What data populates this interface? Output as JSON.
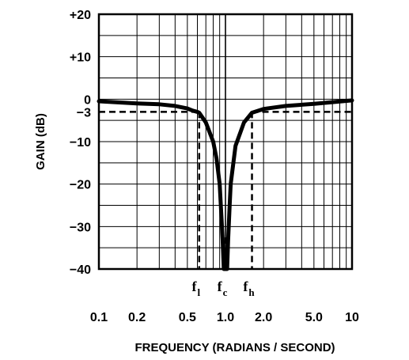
{
  "chart_data": {
    "type": "line",
    "xlabel": "FREQUENCY (RADIANS / SECOND)",
    "ylabel": "GAIN (dB)",
    "x_scale": "log",
    "xlim": [
      0.1,
      10
    ],
    "ylim": [
      -40,
      20
    ],
    "grid": true,
    "x_ticks": [
      {
        "value": 0.1,
        "label": "0.1"
      },
      {
        "value": 0.2,
        "label": "0.2"
      },
      {
        "value": 0.5,
        "label": "0.5"
      },
      {
        "value": 1.0,
        "label": "1.0"
      },
      {
        "value": 2.0,
        "label": "2.0"
      },
      {
        "value": 5.0,
        "label": "5.0"
      },
      {
        "value": 10,
        "label": "10"
      }
    ],
    "y_ticks": [
      {
        "value": 20,
        "label": "+20"
      },
      {
        "value": 10,
        "label": "+10"
      },
      {
        "value": 0,
        "label": "0"
      },
      {
        "value": -3,
        "label": "−3"
      },
      {
        "value": -10,
        "label": "−10"
      },
      {
        "value": -20,
        "label": "−20"
      },
      {
        "value": -30,
        "label": "−30"
      },
      {
        "value": -40,
        "label": "−40"
      }
    ],
    "markers": [
      {
        "main": "f",
        "sub": "l",
        "x": 0.62
      },
      {
        "main": "f",
        "sub": "c",
        "x": 1.0
      },
      {
        "main": "f",
        "sub": "h",
        "x": 1.62
      }
    ],
    "reference_level": -3,
    "series": [
      {
        "x": [
          0.1,
          0.2,
          0.3,
          0.4,
          0.5,
          0.55,
          0.6,
          0.62,
          0.7,
          0.8,
          0.85,
          0.9,
          0.93,
          0.95,
          0.97,
          1.0,
          1.03,
          1.05,
          1.08,
          1.1,
          1.2,
          1.4,
          1.62,
          2.0,
          3.0,
          5.0,
          10
        ],
        "y": [
          -0.5,
          -1.0,
          -1.2,
          -1.6,
          -2.2,
          -2.7,
          -3.0,
          -3.2,
          -5.5,
          -10,
          -14,
          -20,
          -28,
          -33,
          -40,
          -40,
          -40,
          -33,
          -25,
          -20,
          -11,
          -5.5,
          -3.2,
          -2.3,
          -1.6,
          -1.1,
          -0.3
        ]
      }
    ]
  }
}
